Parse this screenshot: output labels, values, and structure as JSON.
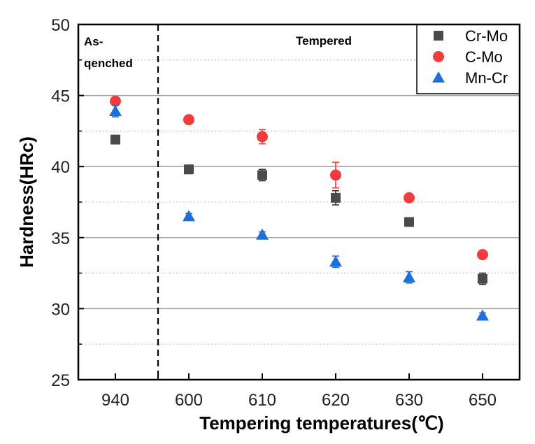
{
  "chart_data": {
    "type": "scatter",
    "title": "",
    "xlabel": "Tempering temperatures(℃)",
    "ylabel": "Hardness(HRc)",
    "categories": [
      "940",
      "600",
      "610",
      "620",
      "630",
      "650"
    ],
    "ylim": [
      25,
      50
    ],
    "yticks": [
      25,
      30,
      35,
      40,
      45,
      50
    ],
    "ytick_labels": [
      "25",
      "30",
      "35",
      "40",
      "45",
      "50"
    ],
    "minor_gridlines": [
      27.5,
      32.5,
      37.5,
      42.5,
      47.5
    ],
    "grid": true,
    "legend_position": "top-right",
    "region_labels": [
      {
        "text_lines": [
          "As-",
          "qenched"
        ],
        "region": "as-quenched"
      },
      {
        "text_lines": [
          "Tempered"
        ],
        "region": "tempered"
      }
    ],
    "series": [
      {
        "name": "Cr-Mo",
        "marker": "square",
        "color": "#4a4a4a",
        "values": [
          41.9,
          39.8,
          39.4,
          37.8,
          36.1,
          32.1
        ],
        "errors": [
          0.2,
          0.3,
          0.4,
          0.5,
          0.2,
          0.4
        ]
      },
      {
        "name": "C-Mo",
        "marker": "circle",
        "color": "#f03c3c",
        "values": [
          44.6,
          43.3,
          42.1,
          39.4,
          37.8,
          33.8
        ],
        "errors": [
          0.2,
          0.2,
          0.5,
          0.9,
          0.2,
          0.2
        ]
      },
      {
        "name": "Mn-Cr",
        "marker": "triangle",
        "color": "#1e6fd9",
        "values": [
          43.9,
          36.5,
          35.2,
          33.3,
          32.2,
          29.5
        ],
        "errors": [
          0.4,
          0.2,
          0.2,
          0.4,
          0.4,
          0.2
        ]
      }
    ]
  }
}
